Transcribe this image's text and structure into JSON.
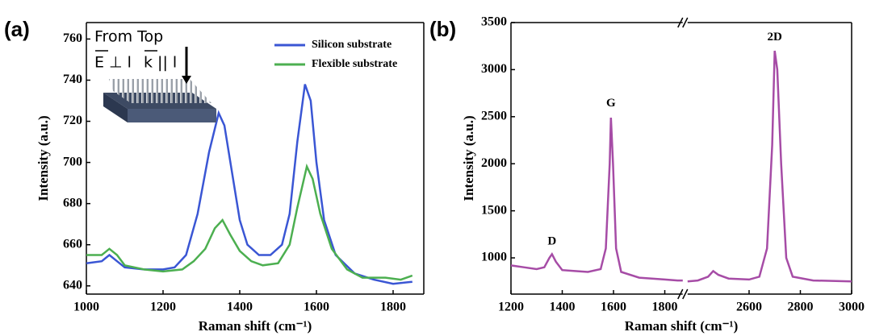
{
  "chart_data": [
    {
      "type": "line",
      "panel_label": "(a)",
      "xlabel": "Raman shift (cm⁻¹)",
      "ylabel": "Intensity (a.u.)",
      "xlim": [
        1000,
        1880
      ],
      "xticks": [
        1000,
        1200,
        1400,
        1600,
        1800
      ],
      "ylim": [
        636,
        768
      ],
      "yticks": [
        640,
        660,
        680,
        700,
        720,
        740,
        760
      ],
      "legend": "upper right",
      "inset": {
        "title": "From Top",
        "e_label": "E ⊥ l",
        "k_label": "k || l"
      },
      "series": [
        {
          "name": "Silicon substrate",
          "color": "#3a56d4",
          "x": [
            1000,
            1040,
            1060,
            1080,
            1100,
            1150,
            1200,
            1230,
            1260,
            1290,
            1320,
            1345,
            1360,
            1380,
            1400,
            1420,
            1450,
            1480,
            1510,
            1530,
            1550,
            1570,
            1585,
            1600,
            1620,
            1650,
            1700,
            1750,
            1800,
            1850
          ],
          "values": [
            651,
            652,
            655,
            652,
            649,
            648,
            648,
            649,
            655,
            675,
            705,
            724,
            718,
            695,
            672,
            660,
            655,
            655,
            660,
            675,
            710,
            738,
            730,
            700,
            672,
            655,
            646,
            643,
            641,
            642
          ]
        },
        {
          "name": "Flexible substrate",
          "color": "#4caf50",
          "x": [
            1000,
            1040,
            1060,
            1080,
            1100,
            1150,
            1200,
            1250,
            1280,
            1310,
            1335,
            1355,
            1375,
            1400,
            1430,
            1460,
            1500,
            1530,
            1550,
            1575,
            1590,
            1610,
            1640,
            1680,
            1720,
            1780,
            1820,
            1850
          ],
          "values": [
            655,
            655,
            658,
            655,
            650,
            648,
            647,
            648,
            652,
            658,
            668,
            672,
            665,
            657,
            652,
            650,
            651,
            660,
            678,
            698,
            692,
            675,
            658,
            648,
            644,
            644,
            643,
            645
          ]
        }
      ]
    },
    {
      "type": "line",
      "panel_label": "(b)",
      "xlabel": "Raman shift (cm⁻¹)",
      "ylabel": "Intensity (a.u.)",
      "xlim": [
        1200,
        3000
      ],
      "xbreak": [
        1870,
        2360
      ],
      "xticks": [
        1200,
        1400,
        1600,
        1800,
        2600,
        2800,
        3000
      ],
      "ylim": [
        615,
        3500
      ],
      "yticks": [
        1000,
        1500,
        2000,
        2500,
        3000,
        3500
      ],
      "annotations": [
        {
          "text": "D",
          "x": 1360,
          "y": 1170
        },
        {
          "text": "G",
          "x": 1590,
          "y": 2640
        },
        {
          "text": "2D",
          "x": 2700,
          "y": 3340
        }
      ],
      "series": [
        {
          "color": "#a64ca6",
          "x": [
            1200,
            1250,
            1300,
            1330,
            1350,
            1360,
            1375,
            1400,
            1450,
            1500,
            1550,
            1570,
            1585,
            1590,
            1598,
            1610,
            1630,
            1700,
            1800,
            1850,
            1870,
            null,
            2360,
            2400,
            2440,
            2460,
            2480,
            2520,
            2600,
            2640,
            2670,
            2690,
            2700,
            2710,
            2725,
            2745,
            2770,
            2850,
            3000
          ],
          "values": [
            920,
            900,
            880,
            900,
            1000,
            1040,
            960,
            870,
            860,
            850,
            880,
            1100,
            2000,
            2490,
            2000,
            1100,
            850,
            790,
            770,
            760,
            760,
            null,
            750,
            760,
            800,
            860,
            820,
            780,
            770,
            800,
            1100,
            2200,
            3200,
            3000,
            2000,
            1000,
            800,
            760,
            750
          ]
        }
      ]
    }
  ]
}
